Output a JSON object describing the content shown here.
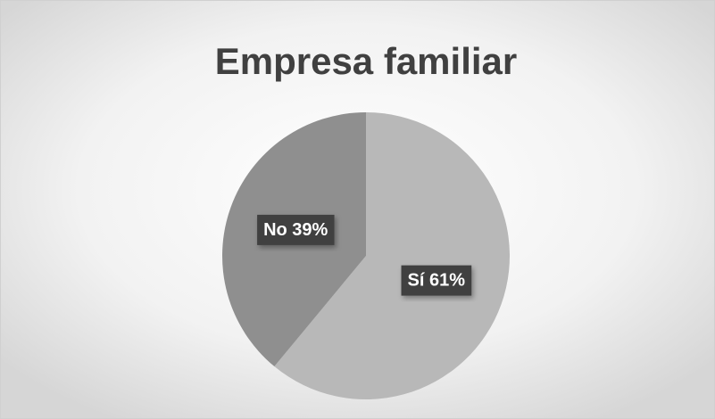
{
  "chart_data": {
    "type": "pie",
    "title": "Empresa familiar",
    "values": [
      61,
      39
    ],
    "value_labels": [
      "Sí 61%",
      "No 39%"
    ],
    "colors": [
      "#b8b8b8",
      "#8f8f8f"
    ]
  }
}
